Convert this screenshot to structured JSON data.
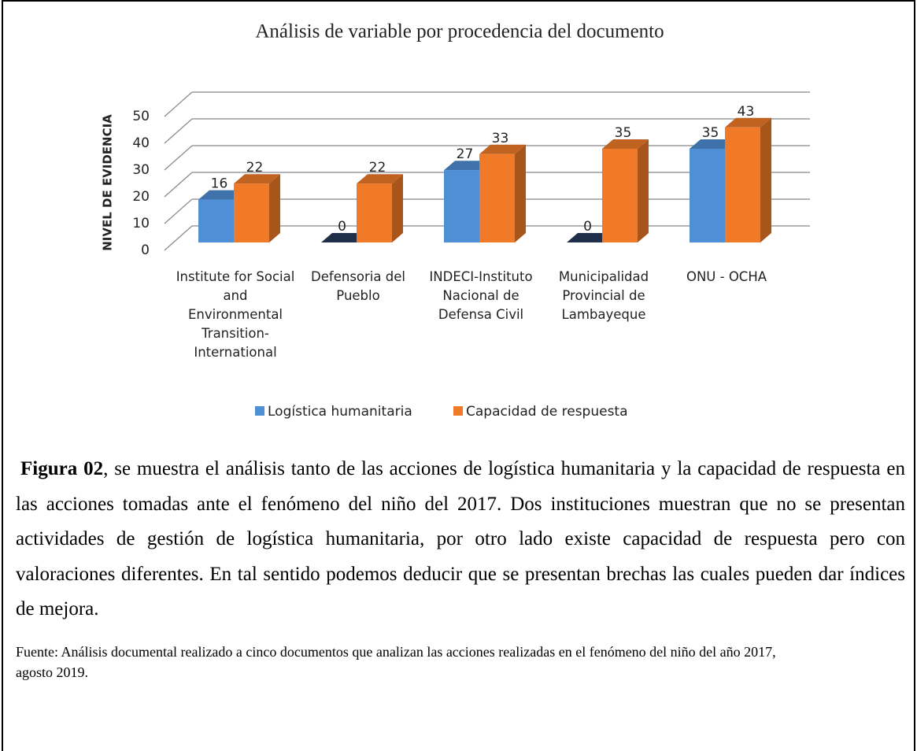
{
  "chart_data": {
    "type": "bar3d",
    "title": "Análisis de variable por procedencia del documento",
    "y_label": "NIVEL DE EVIDENCIA",
    "categories": [
      "Institute for Social and Environmental Transition-International",
      "Defensoria del Pueblo",
      "INDECI-Instituto Nacional de Defensa Civil",
      "Municipalidad Provincial de Lambayeque",
      "ONU - OCHA"
    ],
    "series": [
      {
        "name": "Logística humanitaria",
        "color": "#4f8fd6",
        "values": [
          16,
          0,
          27,
          0,
          35
        ]
      },
      {
        "name": "Capacidad de respuesta",
        "color": "#f07a28",
        "values": [
          22,
          22,
          33,
          35,
          43
        ]
      }
    ],
    "ylim": [
      0,
      50
    ],
    "yticks": [
      0,
      10,
      20,
      30,
      40,
      50
    ],
    "grid": true,
    "legend": "bottom"
  },
  "caption": {
    "label": "Figura 02",
    "text": ", se muestra el análisis tanto de las acciones de logística humanitaria y la capacidad de respuesta en las acciones tomadas ante el fenómeno del niño del 2017. Dos instituciones muestran que no se presentan actividades de gestión de logística humanitaria, por otro lado existe capacidad de respuesta pero con valoraciones diferentes. En tal sentido podemos deducir que se presentan brechas las cuales pueden dar índices de mejora."
  },
  "source": "Fuente: Análisis documental realizado a cinco documentos que analizan las acciones realizadas en el fenómeno del niño del año 2017, agosto 2019."
}
